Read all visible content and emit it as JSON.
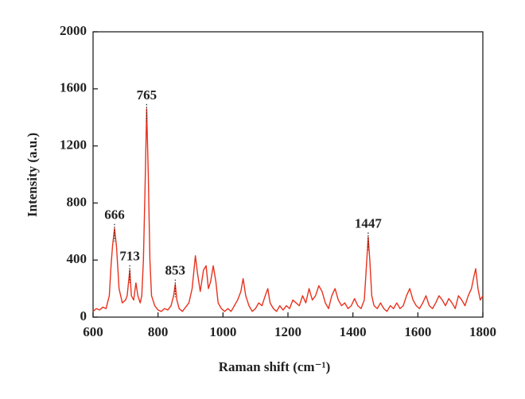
{
  "chart_data": {
    "type": "line",
    "x_label": "Raman shift (cm⁻¹)",
    "y_label": "Intensity (a.u.)",
    "xlim": [
      600,
      1800
    ],
    "xticks": [
      600,
      800,
      1000,
      1200,
      1400,
      1600,
      1800
    ],
    "ylim": [
      0,
      2000
    ],
    "yticks": [
      0,
      400,
      800,
      1200,
      1600,
      2000
    ],
    "series": [
      {
        "color": "#e8321e",
        "x": [
          600,
          610,
          620,
          630,
          640,
          650,
          655,
          660,
          666,
          672,
          680,
          690,
          700,
          705,
          713,
          718,
          725,
          732,
          738,
          745,
          750,
          755,
          760,
          765,
          770,
          775,
          780,
          790,
          800,
          810,
          820,
          830,
          840,
          848,
          853,
          858,
          865,
          875,
          885,
          895,
          905,
          915,
          922,
          930,
          940,
          948,
          955,
          962,
          970,
          978,
          985,
          995,
          1005,
          1015,
          1025,
          1035,
          1045,
          1055,
          1062,
          1070,
          1080,
          1090,
          1100,
          1110,
          1120,
          1130,
          1138,
          1145,
          1155,
          1165,
          1175,
          1185,
          1195,
          1205,
          1215,
          1225,
          1235,
          1245,
          1255,
          1265,
          1275,
          1285,
          1295,
          1305,
          1315,
          1325,
          1335,
          1345,
          1355,
          1365,
          1375,
          1385,
          1395,
          1405,
          1415,
          1425,
          1435,
          1440,
          1447,
          1452,
          1458,
          1465,
          1475,
          1485,
          1495,
          1505,
          1515,
          1525,
          1535,
          1545,
          1555,
          1565,
          1575,
          1585,
          1595,
          1605,
          1615,
          1625,
          1635,
          1645,
          1655,
          1665,
          1675,
          1685,
          1695,
          1705,
          1715,
          1725,
          1735,
          1745,
          1755,
          1765,
          1772,
          1778,
          1785,
          1792,
          1800
        ],
        "values": [
          40,
          60,
          50,
          70,
          60,
          150,
          350,
          500,
          620,
          500,
          200,
          100,
          120,
          150,
          330,
          150,
          120,
          240,
          150,
          100,
          150,
          400,
          900,
          1460,
          1000,
          400,
          150,
          80,
          50,
          40,
          60,
          50,
          80,
          150,
          230,
          120,
          60,
          40,
          70,
          100,
          200,
          430,
          300,
          180,
          330,
          360,
          200,
          250,
          360,
          250,
          100,
          60,
          40,
          60,
          40,
          80,
          120,
          180,
          270,
          150,
          80,
          40,
          60,
          100,
          80,
          150,
          200,
          100,
          60,
          40,
          80,
          50,
          80,
          60,
          120,
          100,
          80,
          150,
          100,
          200,
          120,
          150,
          220,
          180,
          100,
          60,
          150,
          200,
          120,
          80,
          100,
          60,
          80,
          130,
          80,
          60,
          120,
          300,
          560,
          400,
          150,
          80,
          60,
          100,
          60,
          40,
          80,
          60,
          100,
          60,
          80,
          150,
          200,
          120,
          80,
          60,
          100,
          150,
          80,
          60,
          100,
          150,
          120,
          80,
          130,
          100,
          60,
          150,
          120,
          80,
          150,
          200,
          280,
          340,
          200,
          120,
          150
        ]
      }
    ],
    "annotations": [
      {
        "label": "666",
        "x": 666,
        "y": 620
      },
      {
        "label": "713",
        "x": 713,
        "y": 330
      },
      {
        "label": "765",
        "x": 765,
        "y": 1460
      },
      {
        "label": "853",
        "x": 853,
        "y": 230
      },
      {
        "label": "1447",
        "x": 1447,
        "y": 560
      }
    ]
  }
}
